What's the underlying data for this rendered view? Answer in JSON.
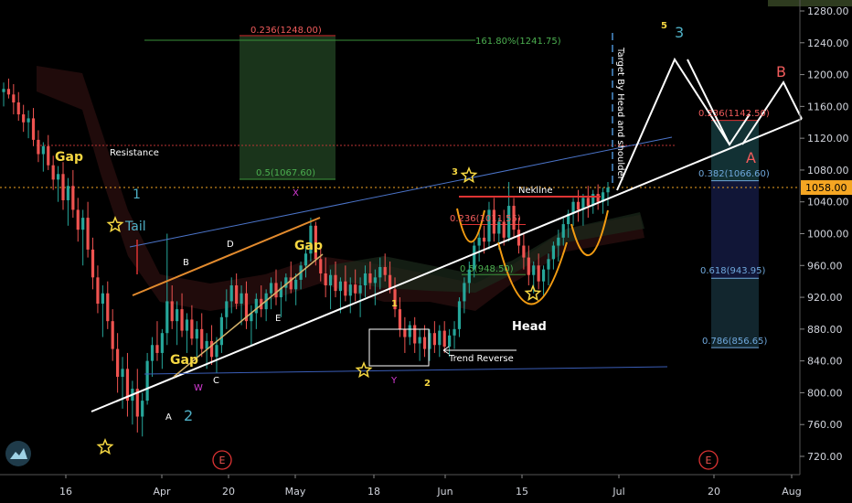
{
  "chart_data": {
    "type": "candlestick",
    "y_axis": {
      "ticks": [
        "1280.00",
        "1240.00",
        "1200.00",
        "1160.00",
        "1120.00",
        "1080.00",
        "1040.00",
        "1000.00",
        "960.00",
        "920.00",
        "880.00",
        "840.00",
        "800.00",
        "760.00",
        "720.00"
      ],
      "range": [
        700,
        1290
      ],
      "current_price": "1058.00"
    },
    "x_axis": {
      "ticks": [
        "16",
        "Apr",
        "20",
        "May",
        "18",
        "Jun",
        "15",
        "Jul",
        "20",
        "Aug"
      ]
    },
    "candles": [
      [
        1178,
        1190,
        1160,
        1182
      ],
      [
        1182,
        1195,
        1170,
        1175
      ],
      [
        1175,
        1188,
        1150,
        1165
      ],
      [
        1165,
        1178,
        1142,
        1150
      ],
      [
        1150,
        1162,
        1128,
        1140
      ],
      [
        1140,
        1155,
        1120,
        1145
      ],
      [
        1145,
        1158,
        1110,
        1118
      ],
      [
        1118,
        1130,
        1090,
        1100
      ],
      [
        1100,
        1115,
        1078,
        1110
      ],
      [
        1110,
        1124,
        1080,
        1086
      ],
      [
        1086,
        1098,
        1055,
        1068
      ],
      [
        1068,
        1085,
        1040,
        1075
      ],
      [
        1075,
        1090,
        1030,
        1042
      ],
      [
        1042,
        1070,
        1010,
        1060
      ],
      [
        1060,
        1080,
        1020,
        1030
      ],
      [
        1030,
        1045,
        990,
        1005
      ],
      [
        1005,
        1030,
        960,
        1020
      ],
      [
        1020,
        1040,
        970,
        980
      ],
      [
        980,
        995,
        930,
        945
      ],
      [
        945,
        960,
        900,
        912
      ],
      [
        912,
        935,
        870,
        925
      ],
      [
        925,
        940,
        880,
        890
      ],
      [
        890,
        905,
        840,
        855
      ],
      [
        855,
        875,
        800,
        820
      ],
      [
        820,
        845,
        780,
        830
      ],
      [
        830,
        850,
        770,
        790
      ],
      [
        790,
        815,
        760,
        805
      ],
      [
        805,
        830,
        750,
        770
      ],
      [
        770,
        800,
        745,
        790
      ],
      [
        790,
        850,
        785,
        840
      ],
      [
        840,
        870,
        820,
        860
      ],
      [
        860,
        890,
        840,
        850
      ],
      [
        850,
        880,
        830,
        875
      ],
      [
        875,
        1000,
        860,
        915
      ],
      [
        915,
        935,
        880,
        890
      ],
      [
        890,
        915,
        860,
        905
      ],
      [
        905,
        925,
        870,
        878
      ],
      [
        878,
        900,
        850,
        892
      ],
      [
        892,
        910,
        860,
        868
      ],
      [
        868,
        890,
        840,
        880
      ],
      [
        880,
        900,
        845,
        855
      ],
      [
        855,
        875,
        830,
        865
      ],
      [
        865,
        885,
        835,
        845
      ],
      [
        845,
        870,
        825,
        860
      ],
      [
        860,
        900,
        850,
        895
      ],
      [
        895,
        930,
        880,
        915
      ],
      [
        915,
        945,
        900,
        935
      ],
      [
        935,
        950,
        905,
        912
      ],
      [
        912,
        935,
        885,
        925
      ],
      [
        925,
        940,
        880,
        890
      ],
      [
        890,
        910,
        860,
        900
      ],
      [
        900,
        925,
        880,
        918
      ],
      [
        918,
        935,
        895,
        905
      ],
      [
        905,
        930,
        890,
        925
      ],
      [
        925,
        945,
        905,
        938
      ],
      [
        938,
        955,
        910,
        920
      ],
      [
        920,
        940,
        895,
        932
      ],
      [
        932,
        950,
        915,
        945
      ],
      [
        945,
        965,
        925,
        930
      ],
      [
        930,
        950,
        910,
        942
      ],
      [
        942,
        965,
        930,
        960
      ],
      [
        960,
        985,
        945,
        975
      ],
      [
        975,
        1020,
        965,
        1010
      ],
      [
        1010,
        1015,
        960,
        968
      ],
      [
        968,
        985,
        940,
        950
      ],
      [
        950,
        970,
        920,
        935
      ],
      [
        935,
        955,
        905,
        948
      ],
      [
        948,
        965,
        920,
        928
      ],
      [
        928,
        945,
        900,
        940
      ],
      [
        940,
        960,
        915,
        922
      ],
      [
        922,
        945,
        900,
        936
      ],
      [
        936,
        955,
        915,
        925
      ],
      [
        925,
        945,
        895,
        935
      ],
      [
        935,
        960,
        920,
        950
      ],
      [
        950,
        965,
        930,
        938
      ],
      [
        938,
        955,
        910,
        945
      ],
      [
        945,
        970,
        930,
        958
      ],
      [
        958,
        975,
        940,
        948
      ],
      [
        948,
        965,
        925,
        930
      ],
      [
        930,
        945,
        895,
        905
      ],
      [
        905,
        920,
        870,
        880
      ],
      [
        880,
        895,
        850,
        870
      ],
      [
        870,
        890,
        860,
        885
      ],
      [
        885,
        895,
        850,
        862
      ],
      [
        862,
        880,
        840,
        870
      ],
      [
        870,
        885,
        845,
        855
      ],
      [
        855,
        880,
        840,
        875
      ],
      [
        875,
        890,
        850,
        860
      ],
      [
        860,
        885,
        845,
        878
      ],
      [
        878,
        890,
        850,
        858
      ],
      [
        858,
        880,
        845,
        872
      ],
      [
        872,
        890,
        855,
        880
      ],
      [
        880,
        920,
        870,
        915
      ],
      [
        915,
        945,
        900,
        938
      ],
      [
        938,
        965,
        925,
        955
      ],
      [
        955,
        990,
        945,
        985
      ],
      [
        985,
        1005,
        965,
        995
      ],
      [
        995,
        1010,
        975,
        990
      ],
      [
        990,
        1040,
        980,
        1030
      ],
      [
        1030,
        1045,
        990,
        1000
      ],
      [
        1000,
        1020,
        980,
        1015
      ],
      [
        1015,
        1030,
        985,
        995
      ],
      [
        995,
        1065,
        990,
        1035
      ],
      [
        1035,
        1045,
        995,
        1005
      ],
      [
        1005,
        1020,
        975,
        985
      ],
      [
        985,
        1000,
        955,
        970
      ],
      [
        970,
        985,
        935,
        948
      ],
      [
        948,
        965,
        925,
        960
      ],
      [
        960,
        975,
        930,
        940
      ],
      [
        940,
        960,
        920,
        955
      ],
      [
        955,
        975,
        935,
        968
      ],
      [
        968,
        990,
        955,
        985
      ],
      [
        985,
        1005,
        965,
        995
      ],
      [
        995,
        1020,
        985,
        1012
      ],
      [
        1012,
        1030,
        995,
        1025
      ],
      [
        1025,
        1045,
        1010,
        1040
      ],
      [
        1040,
        1055,
        1015,
        1030
      ],
      [
        1030,
        1050,
        1010,
        1045
      ],
      [
        1045,
        1060,
        1020,
        1035
      ],
      [
        1035,
        1055,
        1025,
        1050
      ],
      [
        1050,
        1062,
        1030,
        1040
      ],
      [
        1040,
        1058,
        1025,
        1052
      ],
      [
        1052,
        1065,
        1035,
        1058
      ]
    ],
    "annotations": [
      {
        "text": "Gap",
        "color": "#f5d742"
      },
      {
        "text": "Resistance",
        "color": "#ffffff"
      },
      {
        "text": "1",
        "color": "#4fb0c6"
      },
      {
        "text": "Tail",
        "color": "#4fb0c6"
      },
      {
        "text": "B",
        "color": "#ffffff"
      },
      {
        "text": "D",
        "color": "#ffffff"
      },
      {
        "text": "X",
        "color": "#d63ad6"
      },
      {
        "text": "Gap",
        "color": "#f5d742"
      },
      {
        "text": "E",
        "color": "#ffffff"
      },
      {
        "text": "Gap",
        "color": "#f5d742"
      },
      {
        "text": "C",
        "color": "#ffffff"
      },
      {
        "text": "W",
        "color": "#d63ad6"
      },
      {
        "text": "A",
        "color": "#ffffff"
      },
      {
        "text": "2",
        "color": "#4fb0c6"
      },
      {
        "text": "1",
        "color": "#f5d742"
      },
      {
        "text": "Y",
        "color": "#d63ad6"
      },
      {
        "text": "2",
        "color": "#f5d742"
      },
      {
        "text": "Trend Reverse",
        "color": "#ffffff"
      },
      {
        "text": "3",
        "color": "#f5d742"
      },
      {
        "text": "Nekline",
        "color": "#ffffff"
      },
      {
        "text": "Head",
        "color": "#ffffff"
      },
      {
        "text": "5",
        "color": "#f5d742"
      },
      {
        "text": "3",
        "color": "#4fb0c6"
      },
      {
        "text": "B",
        "color": "#f25c5c"
      },
      {
        "text": "A",
        "color": "#f25c5c"
      },
      {
        "text": "Target By Head and shoulder",
        "color": "#ffffff"
      }
    ],
    "fib_labels": [
      {
        "text": "0.236(1248.00)",
        "color": "#f25c5c"
      },
      {
        "text": "161.80%(1241.75)",
        "color": "#4caf50"
      },
      {
        "text": "0.5(1067.60)",
        "color": "#4caf50"
      },
      {
        "text": "0.236(1011.55)",
        "color": "#f25c5c"
      },
      {
        "text": "0.5(948.50)",
        "color": "#4caf50"
      },
      {
        "text": "0.236(1142.50)",
        "color": "#f25c5c"
      },
      {
        "text": "0.382(1066.60)",
        "color": "#6fa8dc"
      },
      {
        "text": "0.618(943.95)",
        "color": "#6fa8dc"
      },
      {
        "text": "0.786(856.65)",
        "color": "#6fa8dc"
      }
    ],
    "event_markers": [
      "E",
      "E"
    ],
    "colors": {
      "up": "#26a69a",
      "down": "#ef5350",
      "background": "#000000",
      "price_tag": "#f5a623"
    }
  }
}
